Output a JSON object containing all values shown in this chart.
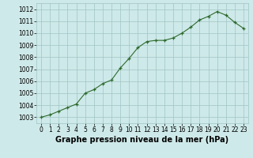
{
  "x": [
    0,
    1,
    2,
    3,
    4,
    5,
    6,
    7,
    8,
    9,
    10,
    11,
    12,
    13,
    14,
    15,
    16,
    17,
    18,
    19,
    20,
    21,
    22,
    23
  ],
  "y": [
    1003.0,
    1003.2,
    1003.5,
    1003.8,
    1004.1,
    1005.0,
    1005.3,
    1005.8,
    1006.1,
    1007.1,
    1007.9,
    1008.8,
    1009.3,
    1009.4,
    1009.4,
    1009.6,
    1010.0,
    1010.5,
    1011.1,
    1011.4,
    1011.8,
    1011.5,
    1010.9,
    1010.4
  ],
  "xlim": [
    -0.5,
    23.5
  ],
  "ylim": [
    1002.5,
    1012.5
  ],
  "yticks": [
    1003,
    1004,
    1005,
    1006,
    1007,
    1008,
    1009,
    1010,
    1011,
    1012
  ],
  "xticks": [
    0,
    1,
    2,
    3,
    4,
    5,
    6,
    7,
    8,
    9,
    10,
    11,
    12,
    13,
    14,
    15,
    16,
    17,
    18,
    19,
    20,
    21,
    22,
    23
  ],
  "xlabel": "Graphe pression niveau de la mer (hPa)",
  "line_color": "#2d6a2d",
  "marker": "+",
  "marker_size": 3.5,
  "bg_color": "#cee9e9",
  "grid_color": "#a0c4c4",
  "tick_label_fontsize": 5.5,
  "xlabel_fontsize": 7.0,
  "line_width": 0.8
}
